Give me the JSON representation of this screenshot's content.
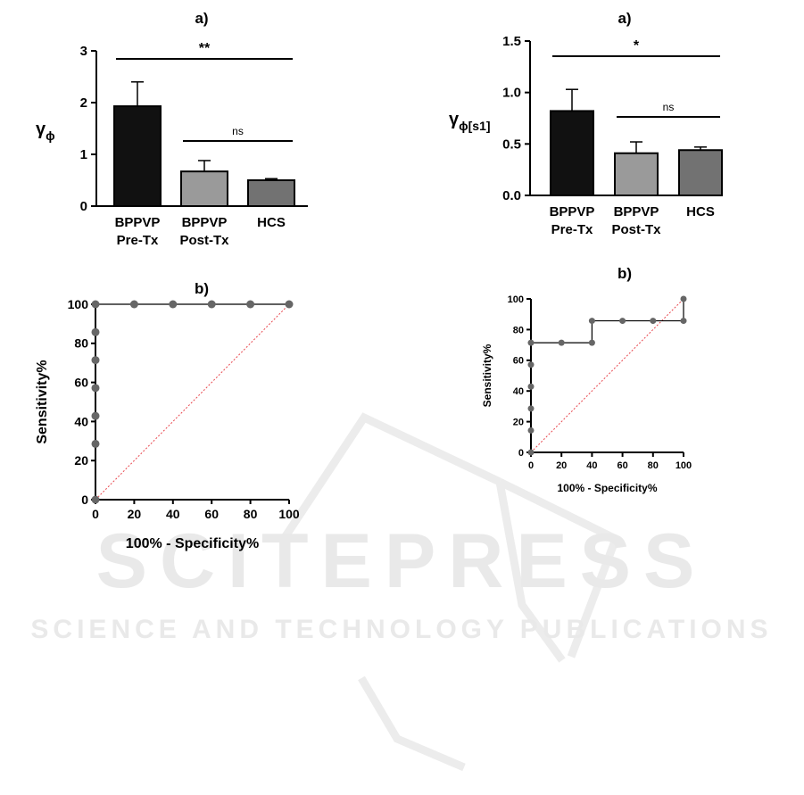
{
  "watermark": {
    "main": "SCITEPRESS",
    "sub": "SCIENCE AND TECHNOLOGY PUBLICATIONS",
    "color": "#e9e9e9"
  },
  "chart_data": [
    {
      "id": "bar-left",
      "type": "bar",
      "panel_label": "a)",
      "ylabel_main": "γ",
      "ylabel_sub": "ϕ",
      "categories": [
        "BPPVP\nPre-Tx",
        "BPPVP\nPost-Tx",
        "HCS"
      ],
      "values": [
        1.93,
        0.67,
        0.5
      ],
      "errors": [
        0.47,
        0.21,
        0.03
      ],
      "colors": [
        "#111111",
        "#9a9a9a",
        "#727272"
      ],
      "ylim": [
        0,
        3
      ],
      "yticks": [
        0,
        1,
        2,
        3
      ],
      "ytick_labels": [
        "0",
        "1",
        "2",
        "3"
      ],
      "significance": [
        {
          "from": 0,
          "to": 2,
          "label": "**"
        },
        {
          "from": 1,
          "to": 2,
          "label": "ns"
        }
      ]
    },
    {
      "id": "bar-right",
      "type": "bar",
      "panel_label": "a)",
      "ylabel_main": "γ",
      "ylabel_sub": "ϕ[s1]",
      "categories": [
        "BPPVP\nPre-Tx",
        "BPPVP\nPost-Tx",
        "HCS"
      ],
      "values": [
        0.82,
        0.41,
        0.44
      ],
      "errors": [
        0.21,
        0.11,
        0.03
      ],
      "colors": [
        "#111111",
        "#9a9a9a",
        "#727272"
      ],
      "ylim": [
        0,
        1.5
      ],
      "yticks": [
        0,
        0.5,
        1.0,
        1.5
      ],
      "ytick_labels": [
        "0.0",
        "0.5",
        "1.0",
        "1.5"
      ],
      "significance": [
        {
          "from": 0,
          "to": 2,
          "label": "*"
        },
        {
          "from": 1,
          "to": 2,
          "label": "ns"
        }
      ]
    },
    {
      "id": "roc-left",
      "type": "line",
      "panel_label": "b)",
      "xlabel": "100% - Specificity%",
      "ylabel": "Sensitivity%",
      "xlim": [
        0,
        100
      ],
      "ylim": [
        0,
        100
      ],
      "xticks": [
        0,
        20,
        40,
        60,
        80,
        100
      ],
      "yticks": [
        0,
        20,
        40,
        60,
        80,
        100
      ],
      "points": [
        [
          0,
          0
        ],
        [
          0,
          28.57
        ],
        [
          0,
          42.86
        ],
        [
          0,
          57.14
        ],
        [
          0,
          71.43
        ],
        [
          0,
          85.71
        ],
        [
          0,
          100
        ],
        [
          20,
          100
        ],
        [
          40,
          100
        ],
        [
          60,
          100
        ],
        [
          80,
          100
        ],
        [
          100,
          100
        ]
      ],
      "step_line": [
        [
          0,
          0
        ],
        [
          0,
          100
        ],
        [
          100,
          100
        ]
      ],
      "reference_line": [
        [
          0,
          0
        ],
        [
          100,
          100
        ]
      ],
      "reference_color": "#e8474e"
    },
    {
      "id": "roc-right",
      "type": "line",
      "panel_label": "b)",
      "xlabel": "100% - Specificity%",
      "ylabel": "Sensitivity%",
      "xlim": [
        0,
        100
      ],
      "ylim": [
        0,
        100
      ],
      "xticks": [
        0,
        20,
        40,
        60,
        80,
        100
      ],
      "yticks": [
        0,
        20,
        40,
        60,
        80,
        100
      ],
      "points": [
        [
          0,
          0
        ],
        [
          0,
          14.29
        ],
        [
          0,
          28.57
        ],
        [
          0,
          42.86
        ],
        [
          0,
          57.14
        ],
        [
          0,
          71.43
        ],
        [
          20,
          71.43
        ],
        [
          40,
          71.43
        ],
        [
          40,
          85.71
        ],
        [
          60,
          85.71
        ],
        [
          80,
          85.71
        ],
        [
          100,
          85.71
        ],
        [
          100,
          100
        ]
      ],
      "step_line": [
        [
          0,
          0
        ],
        [
          0,
          71.43
        ],
        [
          40,
          71.43
        ],
        [
          40,
          85.71
        ],
        [
          100,
          85.71
        ],
        [
          100,
          100
        ]
      ],
      "reference_line": [
        [
          0,
          0
        ],
        [
          100,
          100
        ]
      ],
      "reference_color": "#e8474e"
    }
  ]
}
